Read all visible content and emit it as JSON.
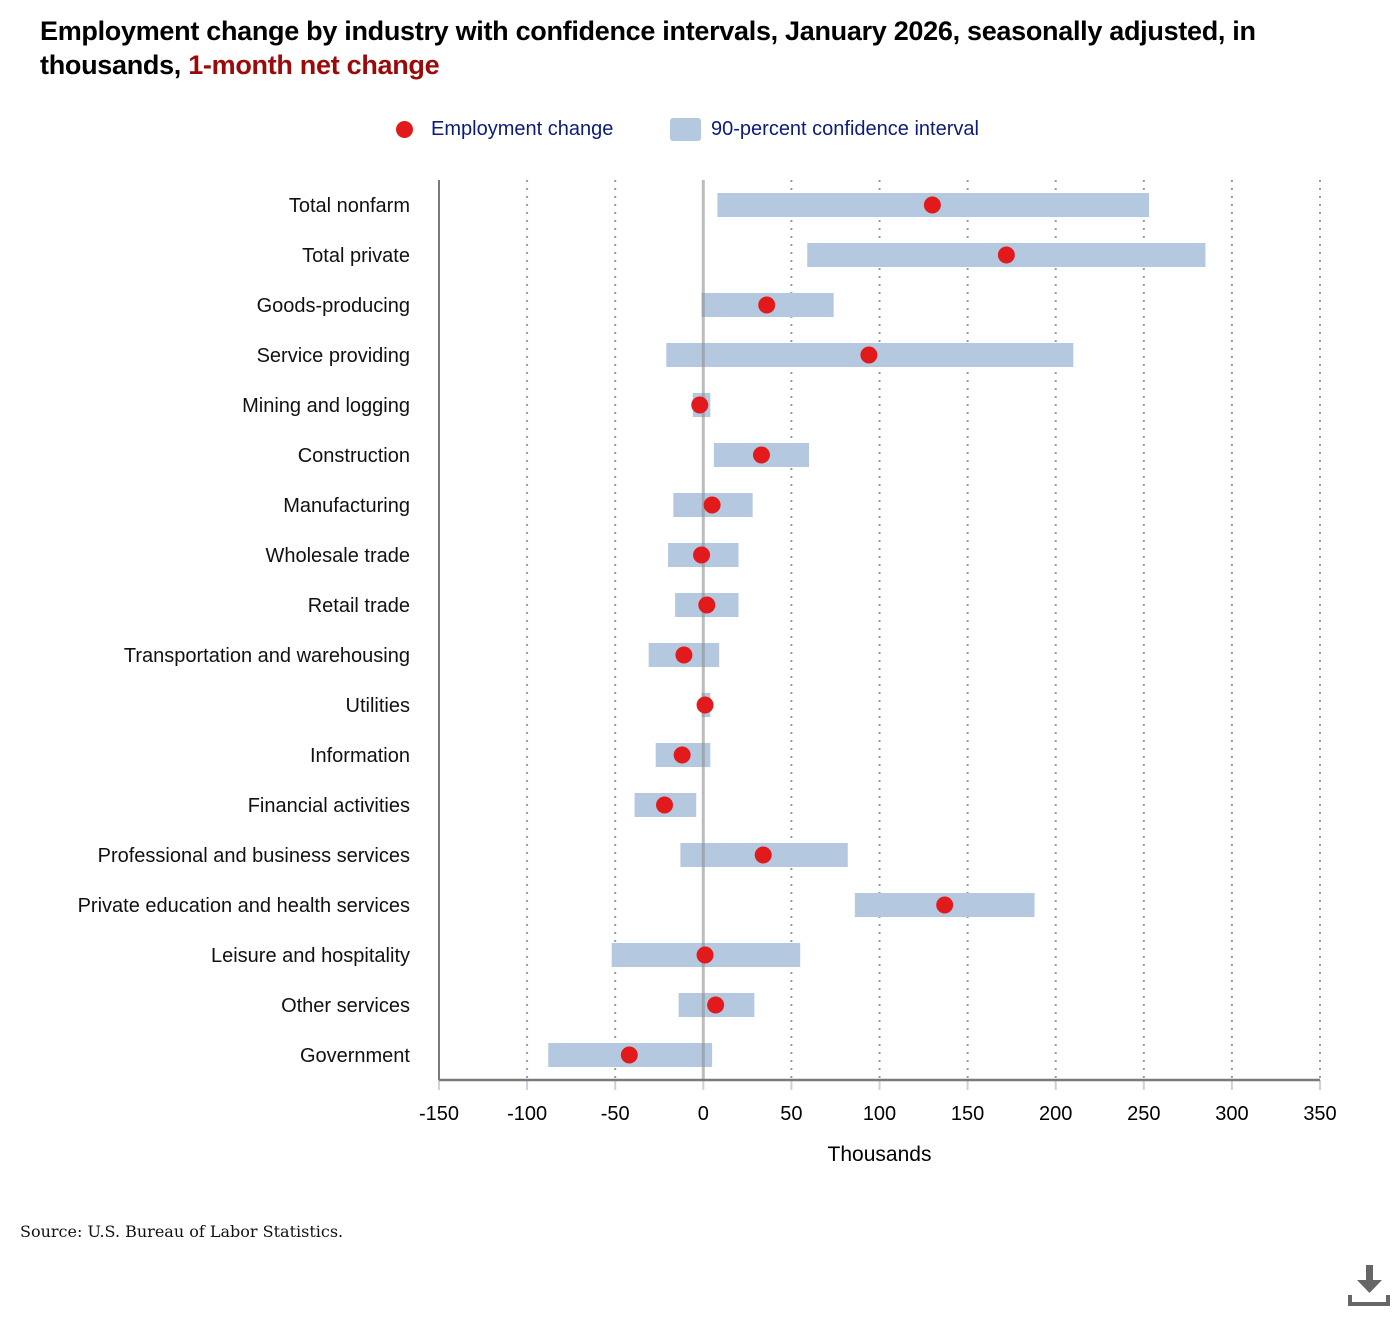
{
  "header": {
    "title_main": "Employment change by industry with confidence intervals, January 2026, seasonally adjusted, in thousands, ",
    "title_highlight": "1-month net change"
  },
  "legend": {
    "point_label": "Employment change",
    "interval_label": "90-percent confidence interval"
  },
  "footer": {
    "source": "Source: U.S. Bureau of Labor Statistics.",
    "download_icon": "download-icon"
  },
  "colors": {
    "point": "#e31a1c",
    "interval": "#b4c9e0",
    "title_highlight": "#9b0a0a",
    "legend_text": "#0d1b7a"
  },
  "chart_data": {
    "type": "dot-interval",
    "title": "Employment change by industry with confidence intervals, January 2026, seasonally adjusted, in thousands, 1-month net change",
    "xlabel": "Thousands",
    "ylabel": "",
    "xlim": [
      -150,
      350
    ],
    "xticks": [
      -150,
      -100,
      -50,
      0,
      50,
      100,
      150,
      200,
      250,
      300,
      350
    ],
    "xtick_labels": [
      "-150",
      "-100",
      "-50",
      "0",
      "50",
      "100",
      "150",
      "200",
      "250",
      "300",
      "350"
    ],
    "grid": "vertical dotted",
    "legend_position": "top-center",
    "series": [
      {
        "name": "Employment change",
        "type": "point"
      },
      {
        "name": "90-percent confidence interval",
        "type": "interval"
      }
    ],
    "categories": [
      "Total nonfarm",
      "Total private",
      "Goods-producing",
      "Service providing",
      "Mining and logging",
      "Construction",
      "Manufacturing",
      "Wholesale trade",
      "Retail trade",
      "Transportation and warehousing",
      "Utilities",
      "Information",
      "Financial activities",
      "Professional and business services",
      "Private education and health services",
      "Leisure and hospitality",
      "Other services",
      "Government"
    ],
    "values": [
      130,
      172,
      36,
      94,
      -2,
      33,
      5,
      -1,
      2,
      -11,
      1,
      -12,
      -22,
      34,
      137,
      1,
      7,
      -42
    ],
    "ci_low": [
      8,
      59,
      -1,
      -21,
      -6,
      6,
      -17,
      -20,
      -16,
      -31,
      -1,
      -27,
      -39,
      -13,
      86,
      -52,
      -14,
      -88
    ],
    "ci_high": [
      253,
      285,
      74,
      210,
      4,
      60,
      28,
      20,
      20,
      9,
      4,
      4,
      -4,
      82,
      188,
      55,
      29,
      5
    ]
  }
}
